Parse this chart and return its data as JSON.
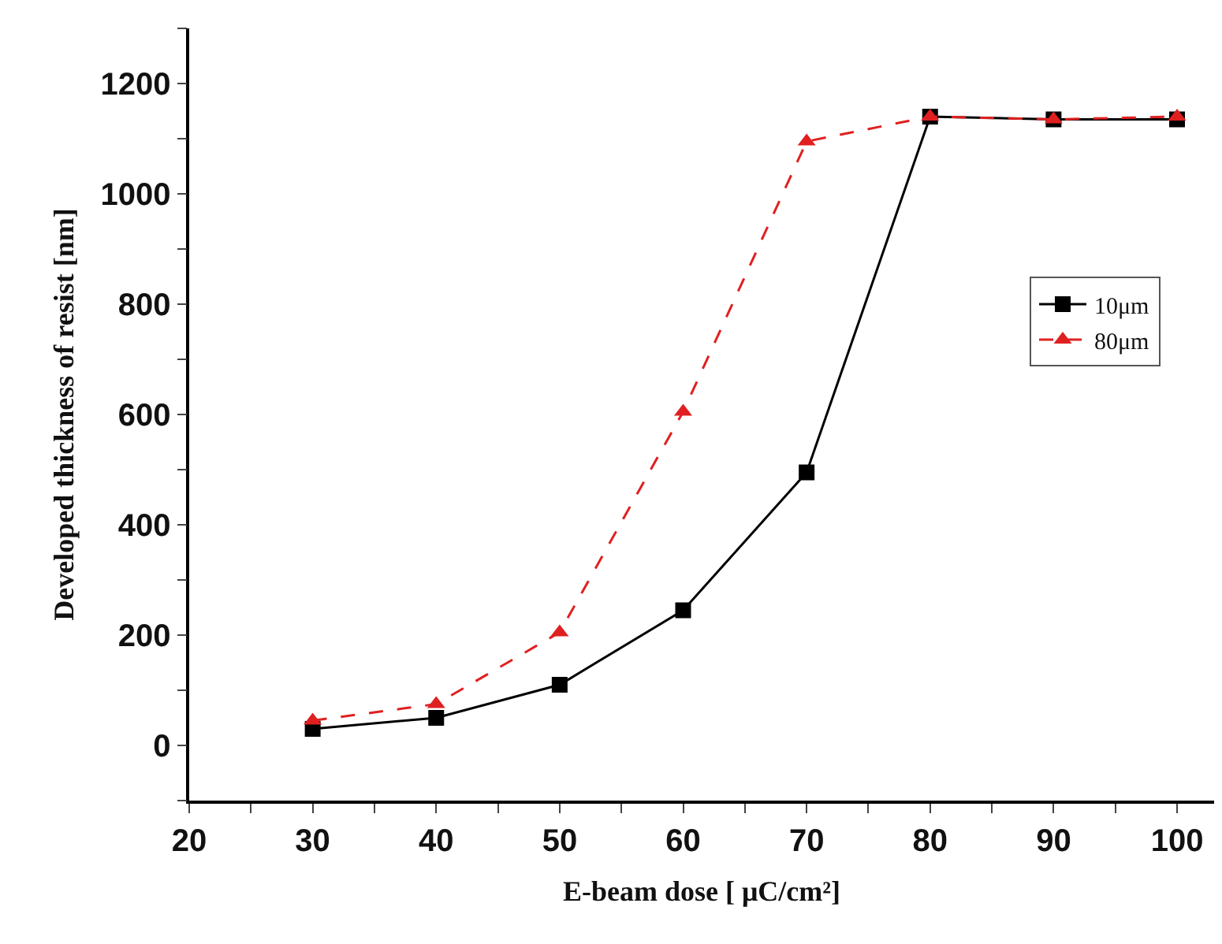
{
  "chart_data": {
    "type": "line",
    "xlabel": "E-beam dose [ μC/cm²]",
    "ylabel": "Developed thickness of resist [nm]",
    "x": [
      30,
      40,
      50,
      60,
      70,
      80,
      90,
      100
    ],
    "series": [
      {
        "name": "10μm",
        "color": "#000000",
        "marker": "square",
        "line_style": "solid",
        "values": [
          30,
          50,
          110,
          245,
          495,
          1140,
          1135,
          1135
        ]
      },
      {
        "name": "80μm",
        "color": "#e02020",
        "marker": "triangle",
        "line_style": "dashed",
        "values": [
          45,
          75,
          205,
          605,
          1095,
          1140,
          1135,
          1140
        ]
      }
    ],
    "xlim": [
      20,
      103
    ],
    "xticks": [
      20,
      {
        "value": 25,
        "label": null
      },
      30,
      {
        "value": 35,
        "label": null
      },
      40,
      {
        "value": 45,
        "label": null
      },
      50,
      {
        "value": 55,
        "label": null
      },
      60,
      {
        "value": 65,
        "label": null
      },
      70,
      {
        "value": 75,
        "label": null
      },
      80,
      {
        "value": 85,
        "label": null
      },
      90,
      {
        "value": 95,
        "label": null
      },
      100
    ],
    "ylim": [
      -100,
      1300
    ],
    "yticks": [
      {
        "value": -100,
        "label": null
      },
      0,
      {
        "value": 100,
        "label": null
      },
      200,
      {
        "value": 300,
        "label": null
      },
      400,
      {
        "value": 500,
        "label": null
      },
      600,
      {
        "value": 700,
        "label": null
      },
      800,
      {
        "value": 900,
        "label": null
      },
      1000,
      {
        "value": 1100,
        "label": null
      },
      1200,
      {
        "value": 1300,
        "label": null
      }
    ],
    "grid": false,
    "legend": "right"
  }
}
